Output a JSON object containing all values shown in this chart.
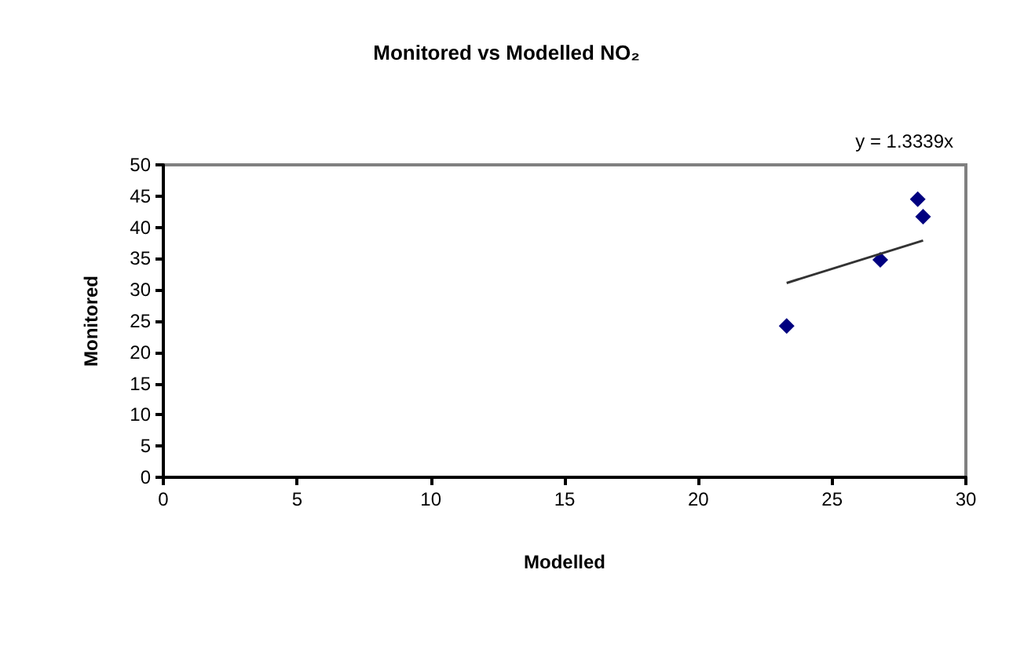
{
  "chart_data": {
    "type": "scatter",
    "title": "Monitored vs Modelled NO₂",
    "xlabel": "Modelled",
    "ylabel": "Monitored",
    "annotations": [
      "y = 1.3339x"
    ],
    "series": [
      {
        "color": "#000080",
        "x": [
          23.3,
          26.8,
          28.2,
          28.4
        ],
        "values": [
          24.2,
          34.8,
          44.5,
          41.7
        ],
        "marker": "diamond"
      },
      {
        "type": "line",
        "color": "#333333",
        "x": [
          23.3,
          28.4
        ],
        "values": [
          31.1,
          37.9
        ],
        "marker": "none",
        "line_style": "solid"
      }
    ],
    "xlim": [
      0,
      30
    ],
    "xticks": [
      0,
      5,
      10,
      15,
      20,
      25,
      30
    ],
    "ylim": [
      0,
      50
    ],
    "yticks": [
      0,
      5,
      10,
      15,
      20,
      25,
      30,
      35,
      40,
      45,
      50
    ],
    "grid": false
  }
}
